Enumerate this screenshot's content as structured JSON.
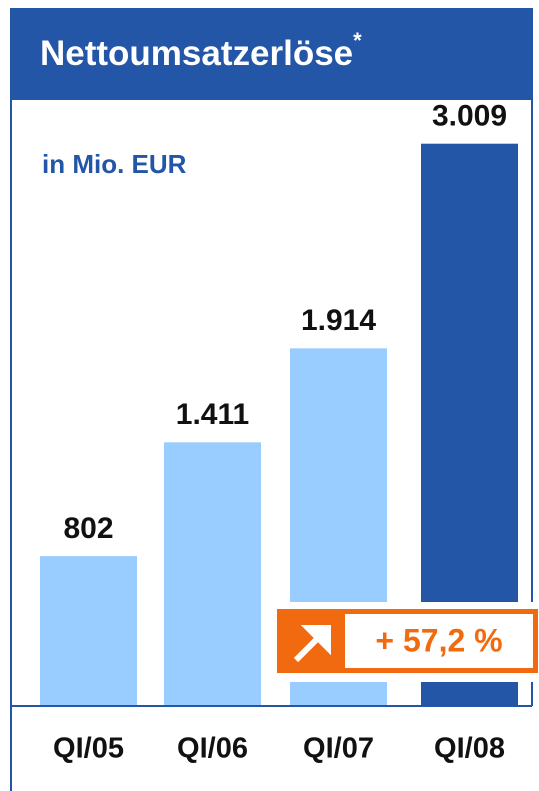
{
  "chart_data": {
    "type": "bar",
    "title": "Nettoumsatzerlöse",
    "title_suffix": "*",
    "subtitle": "in Mio. EUR",
    "categories": [
      "QI/05",
      "QI/06",
      "QI/07",
      "QI/08"
    ],
    "values": [
      802,
      1411,
      1914,
      3009
    ],
    "value_labels": [
      "802",
      "1.411",
      "1.914",
      "3.009"
    ],
    "colors": [
      "#99ccff",
      "#99ccff",
      "#99ccff",
      "#2356a6"
    ],
    "ylim": [
      0,
      3200
    ],
    "annotation": "+ 57,2 %"
  }
}
